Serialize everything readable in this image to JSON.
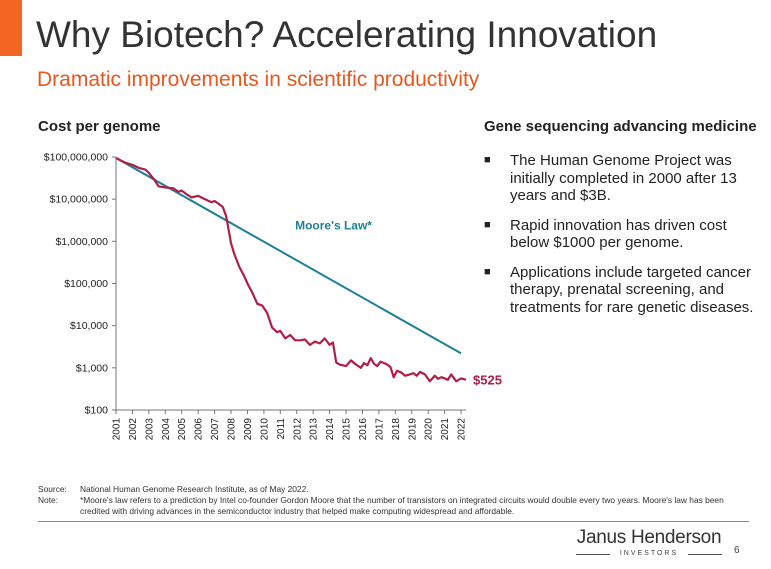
{
  "slide": {
    "title": "Why Biotech? Accelerating Innovation",
    "subtitle": "Dramatic improvements in scientific productivity",
    "accent_color": "#f26522",
    "page_number": "6"
  },
  "right_panel": {
    "heading": "Gene sequencing advancing medicine",
    "bullet_symbol": "■",
    "bullets": [
      "The Human Genome Project was initially completed in 2000 after 13 years and $3B.",
      "Rapid innovation has driven cost below $1000 per genome.",
      "Applications include targeted cancer therapy, prenatal screening, and treatments for rare genetic diseases."
    ]
  },
  "footnotes": {
    "source_key": "Source:",
    "source_text": "National Human Genome Research Institute, as of May 2022.",
    "note_key": "Note:",
    "note_text": "*Moore's law refers to a prediction by Intel co-founder Gordon Moore that the number of transistors on integrated circuits would double every two years. Moore's law has been credited with driving advances in the semiconductor industry that helped make computing widespread and affordable."
  },
  "logo": {
    "name": "Janus Henderson",
    "sub": "INVESTORS"
  },
  "chart_data": {
    "type": "line",
    "title": "Cost per genome",
    "y_scale": "log",
    "ylim": [
      100,
      100000000
    ],
    "y_ticks": [
      {
        "value": 100,
        "label": "$100"
      },
      {
        "value": 1000,
        "label": "$1,000"
      },
      {
        "value": 10000,
        "label": "$10,000"
      },
      {
        "value": 100000,
        "label": "$100,000"
      },
      {
        "value": 1000000,
        "label": "$1,000,000"
      },
      {
        "value": 10000000,
        "label": "$10,000,000"
      },
      {
        "value": 100000000,
        "label": "$100,000,000"
      }
    ],
    "x_ticks": [
      "2001",
      "2002",
      "2003",
      "2004",
      "2005",
      "2006",
      "2007",
      "2008",
      "2009",
      "2010",
      "2011",
      "2012",
      "2013",
      "2014",
      "2015",
      "2016",
      "2017",
      "2018",
      "2019",
      "2020",
      "2021",
      "2022"
    ],
    "xlim": [
      2001,
      2022.3
    ],
    "grid": false,
    "series": [
      {
        "name": "Cost per genome",
        "color": "#b01e46",
        "end_label": "$525",
        "x": [
          2001.0,
          2001.5,
          2002.0,
          2002.4,
          2002.8,
          2003.0,
          2003.3,
          2003.6,
          2004.0,
          2004.5,
          2004.8,
          2005.0,
          2005.3,
          2005.6,
          2006.0,
          2006.4,
          2006.8,
          2007.0,
          2007.2,
          2007.5,
          2007.7,
          2007.9,
          2008.0,
          2008.2,
          2008.5,
          2008.8,
          2009.0,
          2009.3,
          2009.6,
          2009.9,
          2010.2,
          2010.5,
          2010.8,
          2011.0,
          2011.3,
          2011.6,
          2011.9,
          2012.2,
          2012.5,
          2012.8,
          2013.1,
          2013.4,
          2013.7,
          2014.0,
          2014.2,
          2014.4,
          2014.6,
          2014.8,
          2015.0,
          2015.3,
          2015.6,
          2015.9,
          2016.1,
          2016.3,
          2016.5,
          2016.7,
          2016.9,
          2017.1,
          2017.3,
          2017.5,
          2017.7,
          2017.9,
          2018.1,
          2018.3,
          2018.6,
          2018.9,
          2019.1,
          2019.3,
          2019.5,
          2019.8,
          2020.1,
          2020.4,
          2020.6,
          2020.8,
          2021.0,
          2021.2,
          2021.4,
          2021.7,
          2022.0,
          2022.3
        ],
        "y": [
          95000000,
          75000000,
          65000000,
          55000000,
          50000000,
          42000000,
          30000000,
          20000000,
          19000000,
          18000000,
          15000000,
          16000000,
          13000000,
          11000000,
          12000000,
          10000000,
          8500000,
          9000000,
          8000000,
          6500000,
          4000000,
          1500000,
          900000,
          500000,
          250000,
          150000,
          100000,
          60000,
          33000,
          30000,
          20000,
          9000,
          7000,
          7500,
          5000,
          6000,
          4500,
          4500,
          4700,
          3500,
          4200,
          3800,
          5000,
          3500,
          4000,
          1350,
          1200,
          1150,
          1100,
          1500,
          1200,
          1000,
          1300,
          1150,
          1700,
          1250,
          1100,
          1400,
          1300,
          1200,
          1050,
          600,
          850,
          800,
          650,
          700,
          750,
          650,
          800,
          700,
          480,
          650,
          550,
          600,
          560,
          520,
          700,
          480,
          560,
          525
        ]
      },
      {
        "name": "Moore's Law*",
        "color": "#1f7f96",
        "x": [
          2001.0,
          2022.0
        ],
        "y": [
          95000000,
          2200
        ]
      }
    ]
  }
}
